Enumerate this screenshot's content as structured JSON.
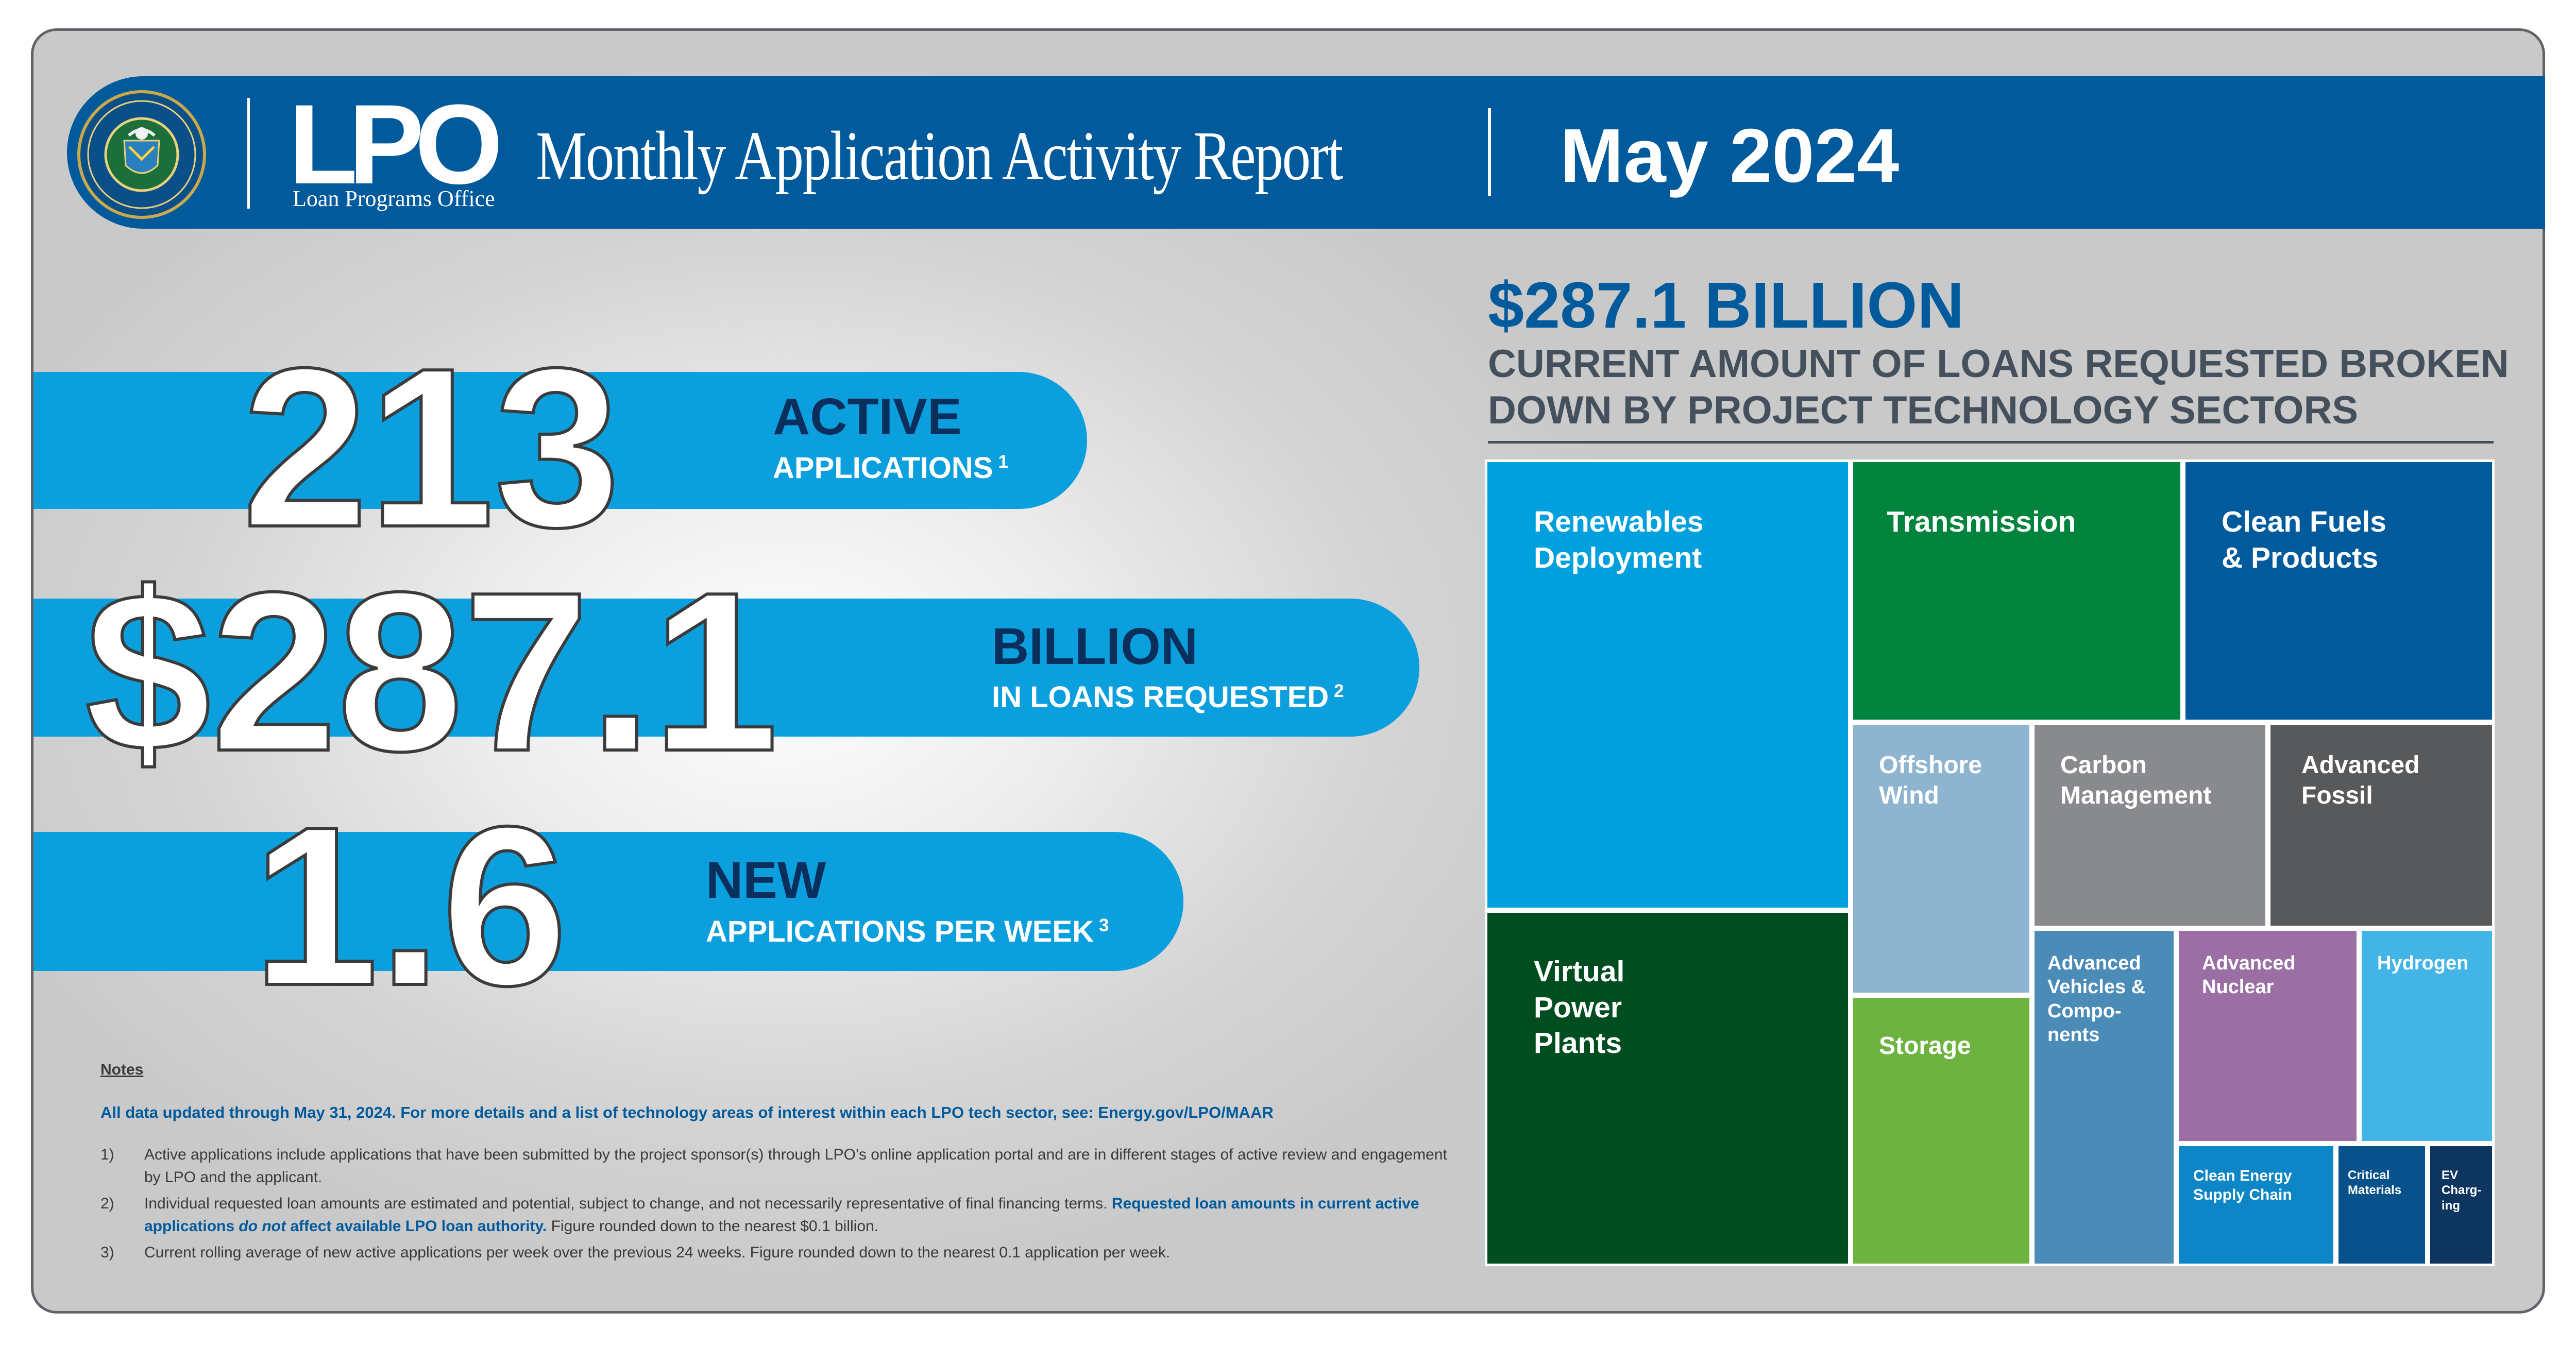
{
  "header": {
    "seal_alt": "Department of Energy seal",
    "logo_text": "LPO",
    "logo_subtitle": "Loan Programs Office",
    "title": "Monthly Application Activity Report",
    "date": "May 2024"
  },
  "stats": [
    {
      "number": "213",
      "headline": "ACTIVE",
      "subline": "APPLICATIONS",
      "note": "1"
    },
    {
      "number": "$287.1",
      "headline": "BILLION",
      "subline": "IN LOANS REQUESTED",
      "note": "2"
    },
    {
      "number": "1.6",
      "headline": "NEW",
      "subline": "APPLICATIONS PER WEEK",
      "note": "3"
    }
  ],
  "treemap": {
    "amount": "$287.1 BILLION",
    "caption": "CURRENT AMOUNT OF LOANS REQUESTED BROKEN DOWN BY PROJECT TECHNOLOGY SECTORS",
    "sectors": [
      {
        "label": "Renewables Deployment",
        "color": "#00a0df"
      },
      {
        "label": "Virtual Power Plants",
        "color": "#004d1f"
      },
      {
        "label": "Transmission",
        "color": "#00843d"
      },
      {
        "label": "Clean Fuels & Products",
        "color": "#005a9c"
      },
      {
        "label": "Offshore Wind",
        "color": "#8fb4cf"
      },
      {
        "label": "Carbon Management",
        "color": "#898a8d"
      },
      {
        "label": "Advanced Fossil",
        "color": "#58595b"
      },
      {
        "label": "Storage",
        "color": "#6db33f"
      },
      {
        "label": "Advanced Vehicles & Compo- nents",
        "color": "#4b8bb8"
      },
      {
        "label": "Advanced Nuclear",
        "color": "#9b6fa3"
      },
      {
        "label": "Hydrogen",
        "color": "#42b4e6"
      },
      {
        "label": "Clean Energy Supply Chain",
        "color": "#0c86c7"
      },
      {
        "label": "Critical Materials",
        "color": "#07528a"
      },
      {
        "label": "EV Charg- ing",
        "color": "#0d355f"
      }
    ]
  },
  "notes": {
    "title": "Notes",
    "lead": "All data updated through May 31, 2024. For more details and a list of technology areas of interest within each LPO tech sector, see: Energy.gov/LPO/MAAR",
    "items": [
      {
        "num": "1)",
        "text": "Active applications include applications that have been submitted by the project sponsor(s) through LPO’s online application portal and are in different stages of active review and engagement by LPO and the applicant."
      },
      {
        "num": "2)",
        "text_a": "Individual requested loan amounts are estimated and potential, subject to change, and not necessarily representative of final financing terms. ",
        "text_b": "Requested loan amounts in current active applications ",
        "text_c": "do not",
        "text_d": " affect available LPO loan authority.",
        "text_e": " Figure rounded down to the nearest $0.1 billion."
      },
      {
        "num": "3)",
        "text": "Current rolling average of new active applications per week over the previous 24 weeks. Figure rounded down to the nearest 0.1 application per week."
      }
    ]
  }
}
